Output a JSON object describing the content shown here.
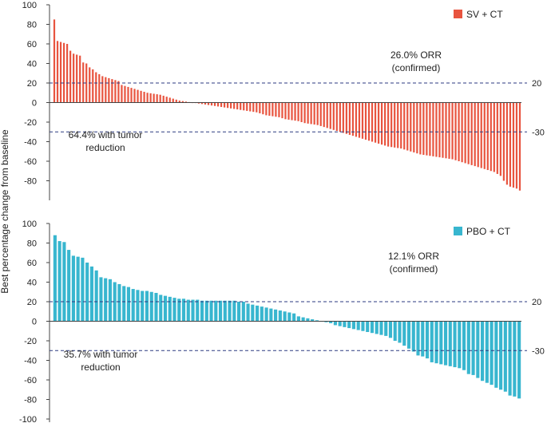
{
  "chart_data": [
    {
      "type": "bar",
      "panel": "top",
      "ylabel": "Best percentage change from baseline",
      "ylim": [
        -100,
        100
      ],
      "yticks": [
        100,
        80,
        60,
        40,
        20,
        0,
        -20,
        -40,
        -60,
        -80
      ],
      "ytick_labels": [
        "100",
        "80",
        "60",
        "40",
        "20",
        "0",
        "-20",
        "-40",
        "-60",
        "-80"
      ],
      "reference_lines": [
        {
          "value": 20,
          "label": "20"
        },
        {
          "value": -30,
          "label": "-30"
        }
      ],
      "legend": {
        "label": "SV + CT",
        "color": "#e8543f",
        "placement": "top-right"
      },
      "annotations": [
        {
          "id": "orr",
          "lines": [
            "26.0% ORR",
            "(confirmed)"
          ]
        },
        {
          "id": "reduction",
          "lines": [
            "64.4% with tumor",
            "reduction"
          ]
        }
      ],
      "series": [
        {
          "name": "SV + CT",
          "color": "#e8543f",
          "values": [
            85,
            63,
            62,
            61,
            60,
            53,
            50,
            49,
            48,
            41,
            40,
            36,
            34,
            31,
            29,
            27,
            26,
            25,
            24,
            23,
            22,
            18,
            17,
            16,
            15,
            14,
            13,
            12,
            11,
            10,
            9.5,
            9,
            8.5,
            8,
            7,
            6,
            5,
            4,
            3,
            2,
            1.5,
            1,
            0.5,
            0,
            -0.5,
            -1,
            -1.5,
            -2,
            -2.5,
            -3,
            -3.5,
            -4,
            -4.5,
            -5,
            -5.5,
            -6,
            -6.5,
            -7,
            -7.5,
            -8,
            -8.5,
            -9,
            -9.5,
            -10,
            -11,
            -12,
            -13,
            -13.5,
            -14,
            -14.5,
            -15,
            -16,
            -17,
            -17.5,
            -18,
            -18.5,
            -19,
            -20,
            -21,
            -21.5,
            -22,
            -22.5,
            -23,
            -24,
            -25,
            -26,
            -27,
            -28,
            -29,
            -30,
            -31,
            -32,
            -33,
            -34,
            -35,
            -36,
            -37,
            -38,
            -39,
            -40,
            -41,
            -42,
            -43,
            -44,
            -45,
            -45.5,
            -46,
            -46.5,
            -47,
            -48,
            -49,
            -50,
            -51,
            -52,
            -53,
            -53.5,
            -54,
            -54.5,
            -55,
            -55.5,
            -56,
            -56.5,
            -57,
            -57.5,
            -58,
            -59,
            -60,
            -61,
            -62,
            -63,
            -64,
            -65,
            -66,
            -67,
            -68,
            -69,
            -70,
            -71,
            -73,
            -75,
            -80,
            -84,
            -86,
            -87,
            -88,
            -90
          ]
        }
      ]
    },
    {
      "type": "bar",
      "panel": "bottom",
      "ylabel": "Best percentage change from baseline",
      "ylim": [
        -100,
        100
      ],
      "yticks": [
        100,
        80,
        60,
        40,
        20,
        0,
        -20,
        -40,
        -60,
        -80,
        -100
      ],
      "ytick_labels": [
        "100",
        "80",
        "60",
        "40",
        "20",
        "0",
        "-20",
        "-40",
        "-60",
        "-80",
        "-100"
      ],
      "reference_lines": [
        {
          "value": 20,
          "label": "20"
        },
        {
          "value": -30,
          "label": "-30"
        }
      ],
      "legend": {
        "label": "PBO + CT",
        "color": "#38b6cf",
        "placement": "top-right"
      },
      "annotations": [
        {
          "id": "orr",
          "lines": [
            "12.1% ORR",
            "(confirmed)"
          ]
        },
        {
          "id": "reduction",
          "lines": [
            "35.7% with tumor",
            "reduction"
          ]
        }
      ],
      "series": [
        {
          "name": "PBO + CT",
          "color": "#38b6cf",
          "values": [
            88,
            82,
            81,
            73,
            67,
            66,
            65,
            60,
            56,
            52,
            45,
            44,
            43,
            40,
            38,
            36,
            35,
            33,
            32,
            31,
            31,
            30,
            29,
            27,
            26,
            25,
            24,
            23,
            23,
            22,
            22,
            22,
            21,
            21,
            21,
            21,
            21,
            21,
            21,
            21,
            20,
            20,
            18,
            17,
            16,
            15,
            14,
            13,
            12,
            11,
            10,
            9,
            8,
            5,
            4,
            3,
            2,
            1,
            0,
            -1,
            -2,
            -4,
            -5,
            -6,
            -7,
            -8,
            -9,
            -10,
            -11,
            -12,
            -13,
            -14,
            -15,
            -17,
            -20,
            -22,
            -25,
            -28,
            -31,
            -35,
            -36,
            -38,
            -42,
            -43,
            -44,
            -45,
            -46,
            -47,
            -48,
            -50,
            -54,
            -55,
            -58,
            -61,
            -63,
            -65,
            -68,
            -70,
            -72,
            -76,
            -77,
            -79
          ]
        }
      ]
    }
  ]
}
